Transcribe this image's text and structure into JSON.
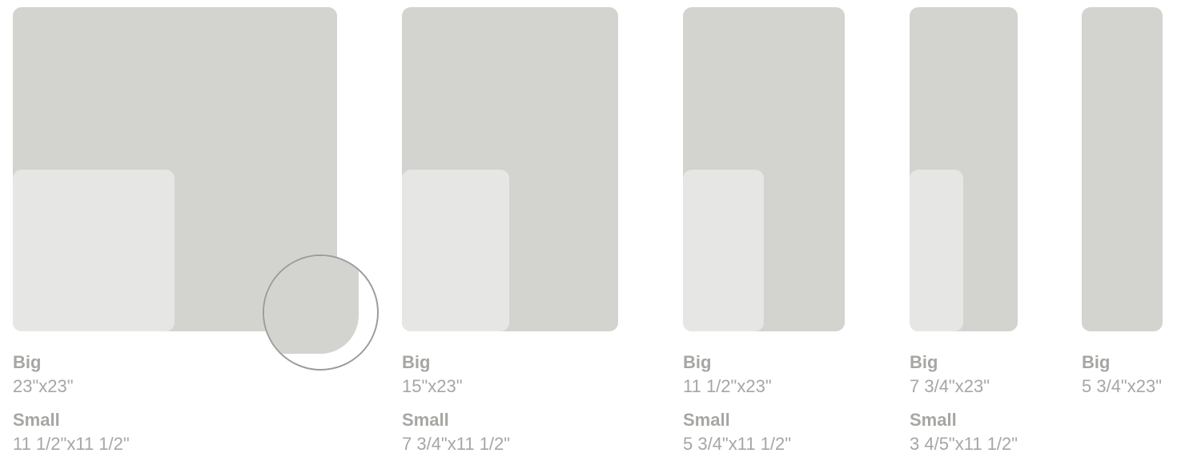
{
  "labels": {
    "big": "Big",
    "small": "Small"
  },
  "colors": {
    "big_panel": "#d3d3cf",
    "small_panel": "#e6e6e4",
    "label_text": "#a6a6a3",
    "magnifier_ring": "#9c9c9a"
  },
  "tiles": [
    {
      "big_size": "23\"x23\"",
      "small_size": "11 1/2\"x11 1/2\""
    },
    {
      "big_size": "15\"x23\"",
      "small_size": "7 3/4\"x11 1/2\""
    },
    {
      "big_size": "11 1/2\"x23\"",
      "small_size": "5 3/4\"x11 1/2\""
    },
    {
      "big_size": "7 3/4\"x23\"",
      "small_size": "3 4/5\"x11 1/2\""
    },
    {
      "big_size": "5 3/4\"x23\""
    }
  ]
}
